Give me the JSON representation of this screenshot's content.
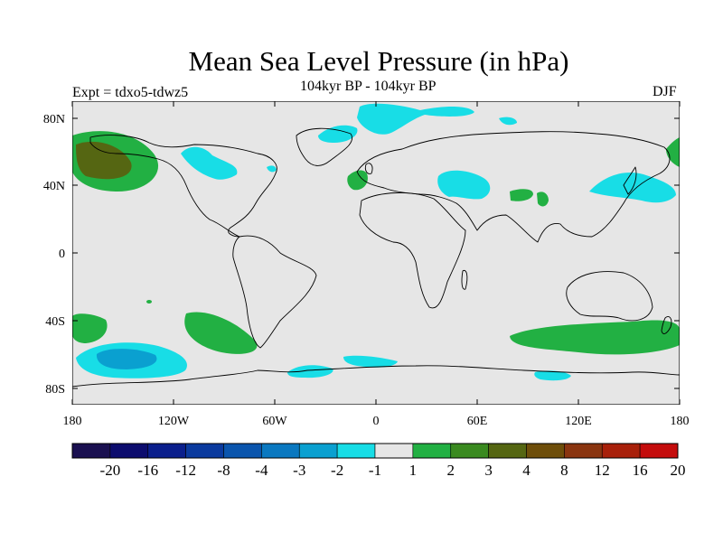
{
  "title": "Mean Sea Level Pressure (in hPa)",
  "subtitle": "104kyr BP - 104kyr BP",
  "experiment": "Expt = tdxo5-tdwz5",
  "season": "DJF",
  "axes": {
    "x_ticks": [
      "180",
      "120W",
      "60W",
      "0",
      "60E",
      "120E",
      "180"
    ],
    "y_ticks": [
      "80N",
      "40N",
      "0",
      "40S",
      "80S"
    ]
  },
  "colorbar": {
    "labels": [
      "-20",
      "-16",
      "-12",
      "-8",
      "-4",
      "-3",
      "-2",
      "-1",
      "1",
      "2",
      "3",
      "4",
      "8",
      "12",
      "16",
      "20"
    ],
    "colors": [
      "#1a1050",
      "#0c0c6e",
      "#0a1f8c",
      "#0a3a9e",
      "#0a55ad",
      "#0a78c0",
      "#0aa0d0",
      "#18dde6",
      "#e6e6e6",
      "#22b043",
      "#3a8a20",
      "#556612",
      "#6e4e0a",
      "#8a3510",
      "#a8200a",
      "#c40c0c"
    ]
  },
  "colors": {
    "land_ocean_background": "#e6e6e6",
    "positive_anomaly": "#22b043",
    "positive_anomaly_strong": "#556612",
    "negative_anomaly": "#18dde6",
    "negative_anomaly_strong": "#0aa0d0"
  }
}
